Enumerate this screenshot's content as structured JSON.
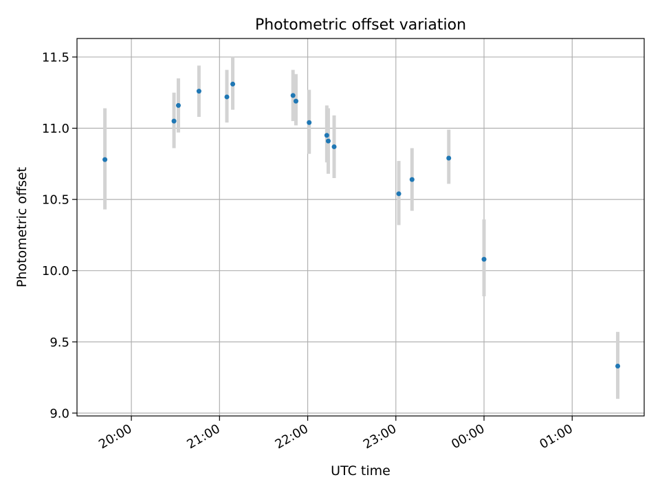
{
  "chart_data": {
    "type": "scatter",
    "title": "Photometric offset variation",
    "xlabel": "UTC time",
    "ylabel": "Photometric offset",
    "x_unit": "UTC time (HH:MM)",
    "xlim": [
      "19:23",
      "01:49"
    ],
    "ylim": [
      8.98,
      11.63
    ],
    "xticks": [
      {
        "label": "20:00",
        "time": "20:00"
      },
      {
        "label": "21:00",
        "time": "21:00"
      },
      {
        "label": "22:00",
        "time": "22:00"
      },
      {
        "label": "23:00",
        "time": "23:00"
      },
      {
        "label": "00:00",
        "time": "00:00"
      },
      {
        "label": "01:00",
        "time": "01:00"
      }
    ],
    "yticks": [
      {
        "label": "9.0",
        "value": 9.0
      },
      {
        "label": "9.5",
        "value": 9.5
      },
      {
        "label": "10.0",
        "value": 10.0
      },
      {
        "label": "10.5",
        "value": 10.5
      },
      {
        "label": "11.0",
        "value": 11.0
      },
      {
        "label": "11.5",
        "value": 11.5
      }
    ],
    "grid": true,
    "point_color": "#1f77b4",
    "errorbar_color": "#d3d3d3",
    "points": [
      {
        "time": "19:42",
        "y": 10.78,
        "ymin": 10.43,
        "ymax": 11.14
      },
      {
        "time": "20:29",
        "y": 11.05,
        "ymin": 10.86,
        "ymax": 11.25
      },
      {
        "time": "20:32",
        "y": 11.16,
        "ymin": 10.97,
        "ymax": 11.35
      },
      {
        "time": "20:46",
        "y": 11.26,
        "ymin": 11.08,
        "ymax": 11.44
      },
      {
        "time": "21:05",
        "y": 11.22,
        "ymin": 11.04,
        "ymax": 11.41
      },
      {
        "time": "21:09",
        "y": 11.31,
        "ymin": 11.13,
        "ymax": 11.5
      },
      {
        "time": "21:50",
        "y": 11.23,
        "ymin": 11.05,
        "ymax": 11.41
      },
      {
        "time": "21:52",
        "y": 11.19,
        "ymin": 11.02,
        "ymax": 11.38
      },
      {
        "time": "22:01",
        "y": 11.04,
        "ymin": 10.82,
        "ymax": 11.27
      },
      {
        "time": "22:13",
        "y": 10.95,
        "ymin": 10.76,
        "ymax": 11.16
      },
      {
        "time": "22:14",
        "y": 10.91,
        "ymin": 10.68,
        "ymax": 11.14
      },
      {
        "time": "22:18",
        "y": 10.87,
        "ymin": 10.65,
        "ymax": 11.09
      },
      {
        "time": "23:02",
        "y": 10.54,
        "ymin": 10.32,
        "ymax": 10.77
      },
      {
        "time": "23:11",
        "y": 10.64,
        "ymin": 10.42,
        "ymax": 10.86
      },
      {
        "time": "23:36",
        "y": 10.79,
        "ymin": 10.61,
        "ymax": 10.99
      },
      {
        "time": "00:00",
        "y": 10.08,
        "ymin": 9.82,
        "ymax": 10.36
      },
      {
        "time": "01:31",
        "y": 9.33,
        "ymin": 9.1,
        "ymax": 9.57
      }
    ]
  }
}
